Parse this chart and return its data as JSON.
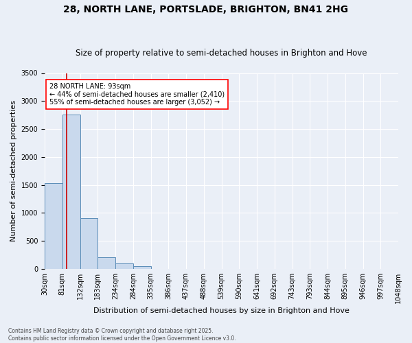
{
  "title1": "28, NORTH LANE, PORTSLADE, BRIGHTON, BN41 2HG",
  "title2": "Size of property relative to semi-detached houses in Brighton and Hove",
  "xlabel": "Distribution of semi-detached houses by size in Brighton and Hove",
  "ylabel": "Number of semi-detached properties",
  "bin_labels": [
    "30sqm",
    "81sqm",
    "132sqm",
    "183sqm",
    "234sqm",
    "284sqm",
    "335sqm",
    "386sqm",
    "437sqm",
    "488sqm",
    "539sqm",
    "590sqm",
    "641sqm",
    "692sqm",
    "743sqm",
    "793sqm",
    "844sqm",
    "895sqm",
    "946sqm",
    "997sqm",
    "1048sqm"
  ],
  "bar_heights": [
    1530,
    2760,
    910,
    205,
    100,
    50,
    0,
    0,
    0,
    0,
    0,
    0,
    0,
    0,
    0,
    0,
    0,
    0,
    0,
    0
  ],
  "bar_color": "#c9d9ed",
  "bar_edge_color": "#5b8db8",
  "property_sqm": 93,
  "annotation_text": "28 NORTH LANE: 93sqm\n← 44% of semi-detached houses are smaller (2,410)\n55% of semi-detached houses are larger (3,052) →",
  "ylim": [
    0,
    3500
  ],
  "yticks": [
    0,
    500,
    1000,
    1500,
    2000,
    2500,
    3000,
    3500
  ],
  "footer1": "Contains HM Land Registry data © Crown copyright and database right 2025.",
  "footer2": "Contains public sector information licensed under the Open Government Licence v3.0.",
  "bg_color": "#eaeff7",
  "plot_bg_color": "#eaeff7",
  "red_line_color": "#cc0000",
  "grid_color": "#ffffff",
  "title1_fontsize": 10,
  "title2_fontsize": 8.5,
  "ylabel_fontsize": 8,
  "xlabel_fontsize": 8,
  "tick_fontsize": 7,
  "annotation_fontsize": 7,
  "footer_fontsize": 5.5
}
